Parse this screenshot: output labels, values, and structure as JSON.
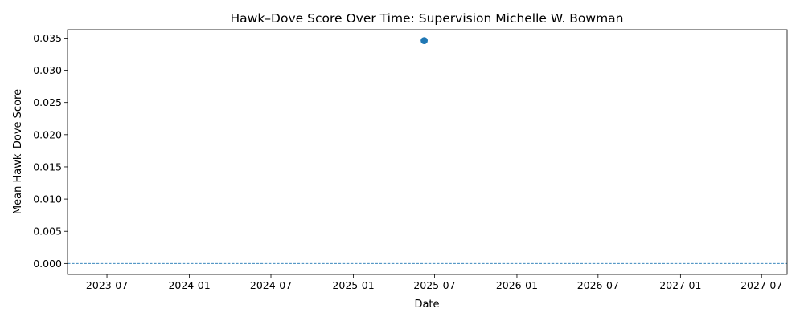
{
  "chart_data": {
    "type": "scatter",
    "title": "Hawk–Dove Score Over Time: Supervision Michelle W. Bowman",
    "xlabel": "Date",
    "ylabel": "Mean Hawk–Dove Score",
    "x_axis_type": "date",
    "xlim": [
      "2023-04-04",
      "2027-08-27"
    ],
    "ylim": [
      -0.0017,
      0.0363
    ],
    "x_ticks": [
      "2023-07",
      "2024-01",
      "2024-07",
      "2025-01",
      "2025-07",
      "2026-01",
      "2026-07",
      "2027-01",
      "2027-07"
    ],
    "y_ticks": [
      "0.000",
      "0.005",
      "0.010",
      "0.015",
      "0.020",
      "0.025",
      "0.030",
      "0.035"
    ],
    "reference_line": {
      "y": 0,
      "style": "dashed"
    },
    "grid": false,
    "legend": "none",
    "points": [
      {
        "x": "2025-06-08",
        "y": 0.0346
      }
    ],
    "colors": {
      "marker": "#1f77b4",
      "reference_line": "#1f77b4",
      "axis": "#000000"
    }
  }
}
